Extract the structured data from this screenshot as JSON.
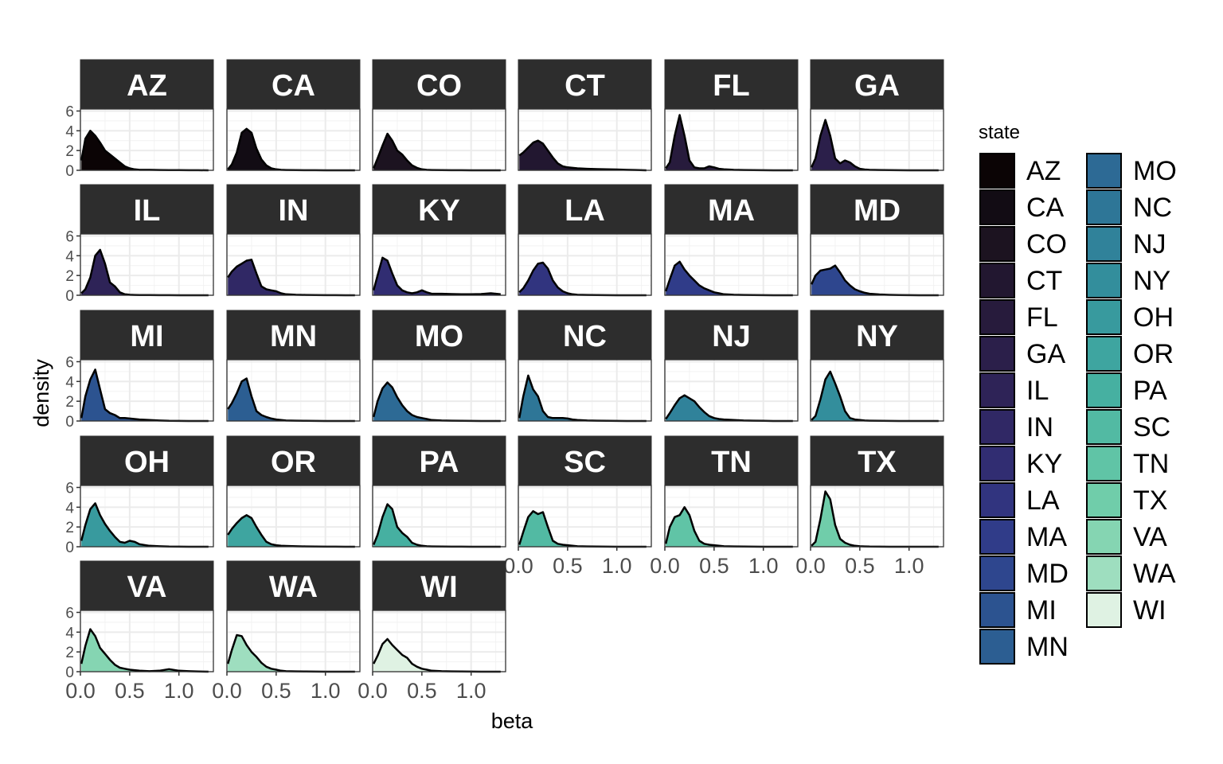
{
  "chart_data": {
    "type": "area",
    "subtype": "faceted-density",
    "xlabel": "beta",
    "ylabel": "density",
    "xlim": [
      0,
      1.35
    ],
    "ylim": [
      0,
      6.2
    ],
    "x_ticks": [
      0.0,
      0.5,
      1.0
    ],
    "x_tick_labels": [
      "0.0",
      "0.5",
      "1.0"
    ],
    "y_ticks": [
      0,
      2,
      4,
      6
    ],
    "y_tick_labels": [
      "0",
      "2",
      "4",
      "6"
    ],
    "grid": true,
    "legend": {
      "title": "state",
      "position": "right",
      "columns": 2
    },
    "x": [
      0.01,
      0.05,
      0.1,
      0.15,
      0.2,
      0.25,
      0.3,
      0.35,
      0.4,
      0.45,
      0.5,
      0.55,
      0.6,
      0.7,
      0.8,
      0.9,
      1.0,
      1.1,
      1.2,
      1.3
    ],
    "series": [
      {
        "name": "AZ",
        "color": "#0b0405",
        "values": [
          1.0,
          3.2,
          4.0,
          3.5,
          2.8,
          2.0,
          1.6,
          1.2,
          0.8,
          0.4,
          0.2,
          0.1,
          0.05,
          0.05,
          0.03,
          0.02,
          0.02,
          0.01,
          0.01,
          0.0
        ]
      },
      {
        "name": "CA",
        "color": "#120c14",
        "values": [
          0.1,
          0.6,
          1.8,
          3.8,
          4.2,
          3.8,
          2.2,
          1.1,
          0.5,
          0.2,
          0.1,
          0.05,
          0.03,
          0.02,
          0.01,
          0.01,
          0.0,
          0.0,
          0.0,
          0.0
        ]
      },
      {
        "name": "CO",
        "color": "#1c1320",
        "values": [
          0.2,
          1.2,
          2.5,
          3.7,
          3.0,
          2.0,
          1.6,
          1.0,
          0.5,
          0.25,
          0.1,
          0.05,
          0.03,
          0.02,
          0.01,
          0.01,
          0.0,
          0.0,
          0.0,
          0.0
        ]
      },
      {
        "name": "CT",
        "color": "#221730",
        "values": [
          1.5,
          1.8,
          2.3,
          2.8,
          3.0,
          2.7,
          2.0,
          1.3,
          0.7,
          0.4,
          0.3,
          0.25,
          0.2,
          0.15,
          0.12,
          0.1,
          0.08,
          0.05,
          0.03,
          0.0
        ]
      },
      {
        "name": "FL",
        "color": "#271b3c",
        "values": [
          0.2,
          0.8,
          3.5,
          5.6,
          3.5,
          1.0,
          0.3,
          0.2,
          0.2,
          0.4,
          0.3,
          0.15,
          0.1,
          0.05,
          0.03,
          0.02,
          0.01,
          0.0,
          0.0,
          0.0
        ]
      },
      {
        "name": "GA",
        "color": "#2b1f4a",
        "values": [
          0.3,
          1.2,
          3.5,
          5.1,
          3.5,
          1.2,
          0.7,
          1.0,
          0.8,
          0.4,
          0.15,
          0.08,
          0.05,
          0.03,
          0.02,
          0.01,
          0.0,
          0.0,
          0.0,
          0.0
        ]
      },
      {
        "name": "IL",
        "color": "#2e2357",
        "values": [
          0.2,
          0.6,
          1.8,
          4.0,
          4.6,
          3.2,
          1.3,
          0.9,
          0.3,
          0.1,
          0.05,
          0.03,
          0.02,
          0.02,
          0.01,
          0.01,
          0.0,
          0.0,
          0.0,
          0.0
        ]
      },
      {
        "name": "IN",
        "color": "#302865",
        "values": [
          1.8,
          2.4,
          2.9,
          3.2,
          3.5,
          3.6,
          2.2,
          0.9,
          0.6,
          0.5,
          0.4,
          0.2,
          0.1,
          0.05,
          0.03,
          0.02,
          0.01,
          0.01,
          0.0,
          0.0
        ]
      },
      {
        "name": "KY",
        "color": "#312d72",
        "values": [
          0.5,
          2.0,
          3.8,
          3.5,
          2.2,
          1.0,
          0.5,
          0.3,
          0.2,
          0.3,
          0.5,
          0.3,
          0.15,
          0.15,
          0.12,
          0.1,
          0.1,
          0.12,
          0.2,
          0.1
        ]
      },
      {
        "name": "LA",
        "color": "#31347f",
        "values": [
          0.3,
          0.7,
          1.5,
          2.5,
          3.2,
          3.3,
          2.7,
          1.5,
          0.8,
          0.4,
          0.2,
          0.1,
          0.05,
          0.03,
          0.02,
          0.01,
          0.0,
          0.0,
          0.0,
          0.0
        ]
      },
      {
        "name": "MA",
        "color": "#303c89",
        "values": [
          0.4,
          1.6,
          3.0,
          3.4,
          2.6,
          2.0,
          1.5,
          1.0,
          0.7,
          0.5,
          0.3,
          0.2,
          0.1,
          0.05,
          0.03,
          0.02,
          0.01,
          0.0,
          0.0,
          0.0
        ]
      },
      {
        "name": "MD",
        "color": "#2e468e",
        "values": [
          1.1,
          2.0,
          2.5,
          2.6,
          2.7,
          3.0,
          2.3,
          1.5,
          1.0,
          0.6,
          0.4,
          0.25,
          0.15,
          0.08,
          0.04,
          0.02,
          0.01,
          0.0,
          0.0,
          0.0
        ]
      },
      {
        "name": "MI",
        "color": "#2c5390",
        "values": [
          0.3,
          2.5,
          4.2,
          5.2,
          3.2,
          1.2,
          0.8,
          0.6,
          0.3,
          0.3,
          0.25,
          0.2,
          0.15,
          0.1,
          0.05,
          0.02,
          0.01,
          0.0,
          0.0,
          0.0
        ]
      },
      {
        "name": "MN",
        "color": "#2c5e92",
        "values": [
          1.2,
          1.8,
          2.8,
          4.0,
          4.3,
          2.5,
          1.0,
          0.6,
          0.4,
          0.25,
          0.15,
          0.1,
          0.05,
          0.03,
          0.02,
          0.01,
          0.0,
          0.0,
          0.0,
          0.0
        ]
      },
      {
        "name": "MO",
        "color": "#2d6a95",
        "values": [
          0.4,
          2.0,
          3.3,
          3.9,
          3.4,
          2.4,
          1.6,
          1.0,
          0.6,
          0.4,
          0.3,
          0.2,
          0.1,
          0.05,
          0.03,
          0.02,
          0.01,
          0.0,
          0.0,
          0.0
        ]
      },
      {
        "name": "NC",
        "color": "#2e7697",
        "values": [
          0.3,
          2.5,
          4.6,
          3.2,
          2.5,
          1.0,
          0.4,
          0.3,
          0.3,
          0.3,
          0.25,
          0.15,
          0.1,
          0.05,
          0.03,
          0.02,
          0.01,
          0.0,
          0.0,
          0.0
        ]
      },
      {
        "name": "NJ",
        "color": "#30829a",
        "values": [
          0.2,
          0.8,
          1.6,
          2.3,
          2.6,
          2.3,
          2.0,
          1.4,
          0.9,
          0.5,
          0.3,
          0.2,
          0.15,
          0.1,
          0.05,
          0.03,
          0.02,
          0.0,
          0.0,
          0.0
        ]
      },
      {
        "name": "NY",
        "color": "#338e9c",
        "values": [
          0.1,
          0.5,
          2.2,
          4.2,
          5.0,
          3.8,
          2.5,
          1.0,
          0.3,
          0.15,
          0.1,
          0.05,
          0.03,
          0.02,
          0.01,
          0.0,
          0.0,
          0.0,
          0.0,
          0.0
        ]
      },
      {
        "name": "OH",
        "color": "#389a9e",
        "values": [
          0.6,
          2.2,
          3.8,
          4.4,
          3.2,
          2.3,
          1.6,
          1.0,
          0.5,
          0.4,
          0.6,
          0.5,
          0.25,
          0.1,
          0.05,
          0.02,
          0.01,
          0.0,
          0.0,
          0.0
        ]
      },
      {
        "name": "OR",
        "color": "#3ea5a0",
        "values": [
          1.2,
          1.8,
          2.4,
          2.9,
          3.2,
          2.9,
          2.0,
          1.2,
          0.5,
          0.25,
          0.15,
          0.1,
          0.08,
          0.05,
          0.03,
          0.02,
          0.01,
          0.01,
          0.0,
          0.0
        ]
      },
      {
        "name": "PA",
        "color": "#46b0a1",
        "values": [
          0.2,
          1.2,
          3.0,
          4.3,
          3.8,
          2.0,
          1.4,
          1.0,
          0.4,
          0.2,
          0.1,
          0.05,
          0.03,
          0.02,
          0.01,
          0.01,
          0.0,
          0.0,
          0.0,
          0.0
        ]
      },
      {
        "name": "SC",
        "color": "#52baa3",
        "values": [
          0.2,
          1.5,
          3.0,
          3.6,
          3.3,
          3.5,
          2.0,
          0.6,
          0.3,
          0.2,
          0.15,
          0.1,
          0.05,
          0.03,
          0.02,
          0.01,
          0.0,
          0.0,
          0.0,
          0.0
        ]
      },
      {
        "name": "TN",
        "color": "#60c4a6",
        "values": [
          0.3,
          2.0,
          3.0,
          3.2,
          4.0,
          3.2,
          1.6,
          0.6,
          0.3,
          0.2,
          0.15,
          0.1,
          0.05,
          0.03,
          0.02,
          0.01,
          0.0,
          0.0,
          0.0,
          0.0
        ]
      },
      {
        "name": "TX",
        "color": "#70cdaa",
        "values": [
          0.1,
          0.5,
          2.8,
          5.6,
          4.8,
          2.2,
          0.8,
          0.4,
          0.2,
          0.1,
          0.05,
          0.03,
          0.02,
          0.01,
          0.0,
          0.0,
          0.0,
          0.0,
          0.0,
          0.0
        ]
      },
      {
        "name": "VA",
        "color": "#85d5b2",
        "values": [
          0.8,
          2.6,
          4.3,
          3.6,
          2.4,
          1.8,
          1.2,
          0.7,
          0.4,
          0.3,
          0.2,
          0.15,
          0.1,
          0.05,
          0.1,
          0.25,
          0.1,
          0.05,
          0.02,
          0.0
        ]
      },
      {
        "name": "WA",
        "color": "#9edebf",
        "values": [
          0.8,
          2.2,
          3.7,
          3.6,
          2.7,
          2.0,
          1.5,
          0.9,
          0.5,
          0.3,
          0.2,
          0.1,
          0.05,
          0.03,
          0.02,
          0.01,
          0.0,
          0.0,
          0.0,
          0.0
        ]
      },
      {
        "name": "WI",
        "color": "#dff2e3",
        "values": [
          0.8,
          1.6,
          2.8,
          3.3,
          2.7,
          2.2,
          1.7,
          1.4,
          0.8,
          0.5,
          0.3,
          0.2,
          0.1,
          0.05,
          0.03,
          0.02,
          0.01,
          0.0,
          0.0,
          0.0
        ]
      }
    ]
  }
}
